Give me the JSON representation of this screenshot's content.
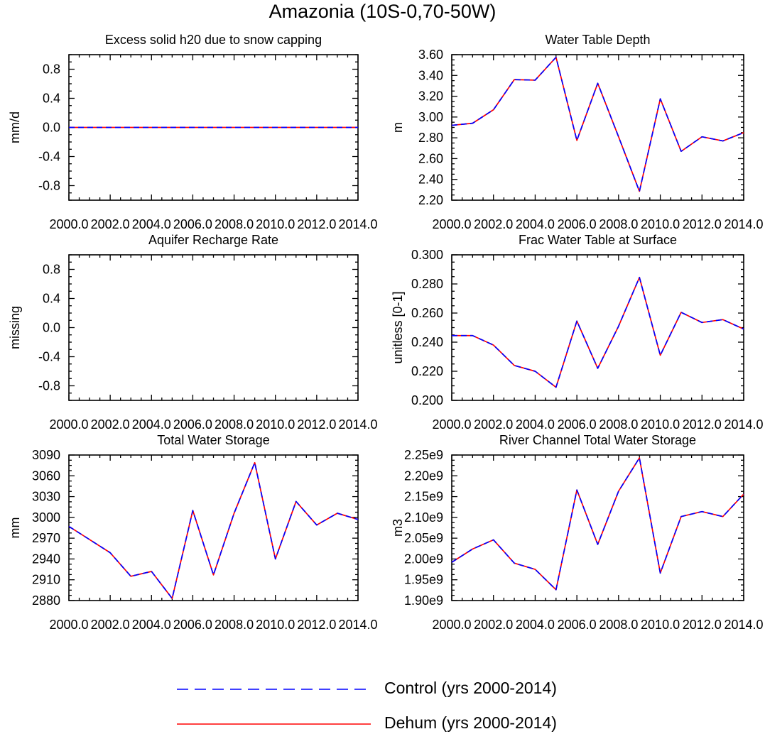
{
  "figure": {
    "title": "Amazonia (10S-0,70-50W)"
  },
  "legend": [
    {
      "label": "Control (yrs 2000-2014)",
      "color": "#0000ff",
      "style": "dashed"
    },
    {
      "label": "Dehum (yrs 2000-2014)",
      "color": "#ff0000",
      "style": "solid"
    }
  ],
  "chart_data": [
    {
      "id": "snow-capping",
      "type": "line",
      "title": "Excess solid h20 due to snow capping",
      "ylabel": "mm/d",
      "xlim": [
        2000,
        2014
      ],
      "ylim": [
        -1.0,
        1.0
      ],
      "yticks": [
        -0.8,
        -0.4,
        0.0,
        0.4,
        0.8
      ],
      "ytick_labels": [
        "-0.8",
        "-0.4",
        "0.0",
        "0.4",
        "0.8"
      ],
      "xticks": [
        2000,
        2002,
        2004,
        2006,
        2008,
        2010,
        2012,
        2014
      ],
      "xtick_labels": [
        "2000.0",
        "2002.0",
        "2004.0",
        "2006.0",
        "2008.0",
        "2010.0",
        "2012.0",
        "2014.0"
      ],
      "x": [
        2000,
        2001,
        2002,
        2003,
        2004,
        2005,
        2006,
        2007,
        2008,
        2009,
        2010,
        2011,
        2012,
        2013,
        2014
      ],
      "series": [
        {
          "name": "Control (yrs 2000-2014)",
          "values": [
            0,
            0,
            0,
            0,
            0,
            0,
            0,
            0,
            0,
            0,
            0,
            0,
            0,
            0,
            0
          ]
        },
        {
          "name": "Dehum (yrs 2000-2014)",
          "values": [
            0,
            0,
            0,
            0,
            0,
            0,
            0,
            0,
            0,
            0,
            0,
            0,
            0,
            0,
            0
          ]
        }
      ]
    },
    {
      "id": "water-table-depth",
      "type": "line",
      "title": "Water Table Depth",
      "ylabel": "m",
      "xlim": [
        2000,
        2014
      ],
      "ylim": [
        2.2,
        3.6
      ],
      "yticks": [
        2.2,
        2.4,
        2.6,
        2.8,
        3.0,
        3.2,
        3.4,
        3.6
      ],
      "ytick_labels": [
        "2.20",
        "2.40",
        "2.60",
        "2.80",
        "3.00",
        "3.20",
        "3.40",
        "3.60"
      ],
      "xticks": [
        2000,
        2002,
        2004,
        2006,
        2008,
        2010,
        2012,
        2014
      ],
      "xtick_labels": [
        "2000.0",
        "2002.0",
        "2004.0",
        "2006.0",
        "2008.0",
        "2010.0",
        "2012.0",
        "2014.0"
      ],
      "x": [
        2000,
        2001,
        2002,
        2003,
        2004,
        2005,
        2006,
        2007,
        2008,
        2009,
        2010,
        2011,
        2012,
        2013,
        2014
      ],
      "series": [
        {
          "name": "Control (yrs 2000-2014)",
          "values": [
            2.92,
            2.94,
            3.07,
            3.36,
            3.355,
            3.575,
            2.775,
            3.325,
            2.81,
            2.285,
            3.175,
            2.67,
            2.81,
            2.77,
            2.85
          ]
        },
        {
          "name": "Dehum (yrs 2000-2014)",
          "values": [
            2.92,
            2.94,
            3.07,
            3.36,
            3.355,
            3.575,
            2.775,
            3.325,
            2.81,
            2.285,
            3.175,
            2.67,
            2.81,
            2.77,
            2.85
          ]
        }
      ]
    },
    {
      "id": "aquifer-recharge",
      "type": "line",
      "title": "Aquifer Recharge Rate",
      "ylabel": "missing",
      "xlim": [
        2000,
        2014
      ],
      "ylim": [
        -1.0,
        1.0
      ],
      "yticks": [
        -0.8,
        -0.4,
        0.0,
        0.4,
        0.8
      ],
      "ytick_labels": [
        "-0.8",
        "-0.4",
        "0.0",
        "0.4",
        "0.8"
      ],
      "xticks": [
        2000,
        2002,
        2004,
        2006,
        2008,
        2010,
        2012,
        2014
      ],
      "xtick_labels": [
        "2000.0",
        "2002.0",
        "2004.0",
        "2006.0",
        "2008.0",
        "2010.0",
        "2012.0",
        "2014.0"
      ],
      "x": [],
      "series": []
    },
    {
      "id": "frac-water-table",
      "type": "line",
      "title": "Frac Water Table at Surface",
      "ylabel": "unitless [0-1]",
      "xlim": [
        2000,
        2014
      ],
      "ylim": [
        0.2,
        0.3
      ],
      "yticks": [
        0.2,
        0.22,
        0.24,
        0.26,
        0.28,
        0.3
      ],
      "ytick_labels": [
        "0.200",
        "0.220",
        "0.240",
        "0.260",
        "0.280",
        "0.300"
      ],
      "xticks": [
        2000,
        2002,
        2004,
        2006,
        2008,
        2010,
        2012,
        2014
      ],
      "xtick_labels": [
        "2000.0",
        "2002.0",
        "2004.0",
        "2006.0",
        "2008.0",
        "2010.0",
        "2012.0",
        "2014.0"
      ],
      "x": [
        2000,
        2001,
        2002,
        2003,
        2004,
        2005,
        2006,
        2007,
        2008,
        2009,
        2010,
        2011,
        2012,
        2013,
        2014
      ],
      "series": [
        {
          "name": "Control (yrs 2000-2014)",
          "values": [
            0.2445,
            0.2445,
            0.238,
            0.224,
            0.22,
            0.209,
            0.2545,
            0.222,
            0.251,
            0.2845,
            0.231,
            0.2605,
            0.2535,
            0.2555,
            0.249
          ]
        },
        {
          "name": "Dehum (yrs 2000-2014)",
          "values": [
            0.2445,
            0.2445,
            0.238,
            0.224,
            0.22,
            0.209,
            0.2545,
            0.222,
            0.251,
            0.2845,
            0.231,
            0.2605,
            0.2535,
            0.2555,
            0.249
          ]
        }
      ]
    },
    {
      "id": "total-water-storage",
      "type": "line",
      "title": "Total Water Storage",
      "ylabel": "mm",
      "xlim": [
        2000,
        2014
      ],
      "ylim": [
        2880,
        3090
      ],
      "yticks": [
        2880,
        2910,
        2940,
        2970,
        3000,
        3030,
        3060,
        3090
      ],
      "ytick_labels": [
        "2880",
        "2910",
        "2940",
        "2970",
        "3000",
        "3030",
        "3060",
        "3090"
      ],
      "xticks": [
        2000,
        2002,
        2004,
        2006,
        2008,
        2010,
        2012,
        2014
      ],
      "xtick_labels": [
        "2000.0",
        "2002.0",
        "2004.0",
        "2006.0",
        "2008.0",
        "2010.0",
        "2012.0",
        "2014.0"
      ],
      "x": [
        2000,
        2001,
        2002,
        2003,
        2004,
        2005,
        2006,
        2007,
        2008,
        2009,
        2010,
        2011,
        2012,
        2013,
        2014
      ],
      "series": [
        {
          "name": "Control (yrs 2000-2014)",
          "values": [
            2987,
            2968,
            2949,
            2915,
            2922,
            2883,
            3010,
            2917,
            3006,
            3079,
            2940,
            3023,
            2989,
            3006,
            2997
          ]
        },
        {
          "name": "Dehum (yrs 2000-2014)",
          "values": [
            2987,
            2968,
            2949,
            2915,
            2922,
            2883,
            3010,
            2917,
            3006,
            3079,
            2940,
            3023,
            2989,
            3006,
            2997
          ]
        }
      ]
    },
    {
      "id": "river-channel-storage",
      "type": "line",
      "title": "River Channel Total Water Storage",
      "ylabel": "m3",
      "xlim": [
        2000,
        2014
      ],
      "ylim": [
        1900000000.0,
        2250000000.0
      ],
      "yticks": [
        1900000000.0,
        1950000000.0,
        2000000000.0,
        2050000000.0,
        2100000000.0,
        2150000000.0,
        2200000000.0,
        2250000000.0
      ],
      "ytick_labels": [
        "1.90e9",
        "1.95e9",
        "2.00e9",
        "2.05e9",
        "2.10e9",
        "2.15e9",
        "2.20e9",
        "2.25e9"
      ],
      "xticks": [
        2000,
        2002,
        2004,
        2006,
        2008,
        2010,
        2012,
        2014
      ],
      "xtick_labels": [
        "2000.0",
        "2002.0",
        "2004.0",
        "2006.0",
        "2008.0",
        "2010.0",
        "2012.0",
        "2014.0"
      ],
      "x": [
        2000,
        2001,
        2002,
        2003,
        2004,
        2005,
        2006,
        2007,
        2008,
        2009,
        2010,
        2011,
        2012,
        2013,
        2014
      ],
      "series": [
        {
          "name": "Control (yrs 2000-2014)",
          "values": [
            1992000000.0,
            2024000000.0,
            2046000000.0,
            1990000000.0,
            1975000000.0,
            1926000000.0,
            2166000000.0,
            2035000000.0,
            2163000000.0,
            2243000000.0,
            1966000000.0,
            2102000000.0,
            2114000000.0,
            2102000000.0,
            2156000000.0
          ]
        },
        {
          "name": "Dehum (yrs 2000-2014)",
          "values": [
            1992000000.0,
            2024000000.0,
            2046000000.0,
            1990000000.0,
            1975000000.0,
            1926000000.0,
            2166000000.0,
            2035000000.0,
            2163000000.0,
            2243000000.0,
            1966000000.0,
            2102000000.0,
            2114000000.0,
            2102000000.0,
            2156000000.0
          ]
        }
      ]
    }
  ]
}
